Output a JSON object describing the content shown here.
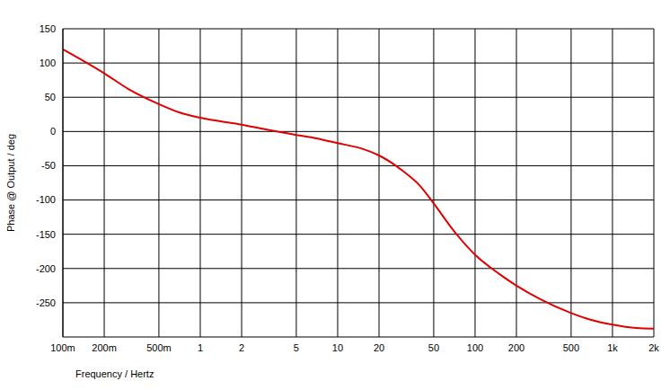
{
  "chart_data": {
    "type": "line",
    "x_label": "Frequency / Hertz",
    "y_label": "Phase @ Output / deg",
    "log": "x",
    "grid": true,
    "x": [
      0.1,
      0.15,
      0.2,
      0.3,
      0.5,
      0.7,
      1,
      2,
      3,
      5,
      7,
      10,
      15,
      20,
      30,
      40,
      50,
      70,
      100,
      150,
      200,
      300,
      500,
      700,
      1000,
      1500,
      2000
    ],
    "series": [
      {
        "name": "Phase @ Output",
        "color": "#e00000",
        "values": [
          120,
          100,
          85,
          62,
          40,
          28,
          20,
          10,
          3,
          -5,
          -10,
          -17,
          -25,
          -35,
          -58,
          -80,
          -105,
          -145,
          -180,
          -208,
          -225,
          -245,
          -265,
          -275,
          -282,
          -287,
          -288
        ]
      }
    ],
    "xlim": [
      0.1,
      2000
    ],
    "xticks": [
      {
        "value": 0.1,
        "label": "100m"
      },
      {
        "value": 0.2,
        "label": "200m"
      },
      {
        "value": 0.5,
        "label": "500m"
      },
      1,
      2,
      5,
      10,
      20,
      50,
      100,
      200,
      500,
      {
        "value": 1000,
        "label": "1k"
      },
      {
        "value": 2000,
        "label": "2k"
      }
    ],
    "ylim": [
      -300,
      150
    ],
    "yticks": [
      150,
      100,
      50,
      0,
      -50,
      -100,
      -150,
      -200,
      -250
    ]
  }
}
